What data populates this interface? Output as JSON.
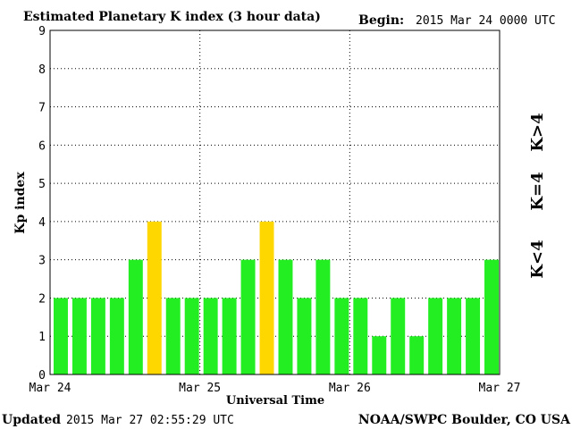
{
  "header": {
    "title": "Estimated Planetary K index (3 hour data)",
    "begin_label": "Begin:",
    "begin_value": "2015 Mar 24 0000 UTC"
  },
  "footer": {
    "updated_label": "Updated",
    "updated_value": "2015 Mar 27 02:55:29 UTC",
    "credit": "NOAA/SWPC Boulder, CO USA"
  },
  "legend": [
    {
      "label": "K<4",
      "color": "#22ee22"
    },
    {
      "label": "K=4",
      "color": "#ffd700"
    },
    {
      "label": "K>4",
      "color": "#ff2200"
    }
  ],
  "colors": {
    "below_4": "#22ee22",
    "equal_4": "#ffd700",
    "above_4": "#ff2200"
  },
  "chart_data": {
    "type": "bar",
    "title": "Estimated Planetary K index (3 hour data)",
    "xlabel": "Universal Time",
    "ylabel": "Kp index",
    "x_ticks": [
      "Mar 24",
      "Mar 25",
      "Mar 26",
      "Mar 27"
    ],
    "y_ticks": [
      "0",
      "1",
      "2",
      "3",
      "4",
      "5",
      "6",
      "7",
      "8",
      "9"
    ],
    "ylim": [
      0,
      9
    ],
    "grid": true,
    "categories": [
      "Mar 24 00",
      "Mar 24 03",
      "Mar 24 06",
      "Mar 24 09",
      "Mar 24 12",
      "Mar 24 15",
      "Mar 24 18",
      "Mar 24 21",
      "Mar 25 00",
      "Mar 25 03",
      "Mar 25 06",
      "Mar 25 09",
      "Mar 25 12",
      "Mar 25 15",
      "Mar 25 18",
      "Mar 25 21",
      "Mar 26 00",
      "Mar 26 03",
      "Mar 26 06",
      "Mar 26 09",
      "Mar 26 12",
      "Mar 26 15",
      "Mar 26 18",
      "Mar 26 21"
    ],
    "values": [
      2,
      2,
      2,
      2,
      3,
      4,
      2,
      2,
      2,
      2,
      3,
      4,
      3,
      2,
      3,
      2,
      2,
      1,
      2,
      1,
      2,
      2,
      2,
      3
    ]
  }
}
